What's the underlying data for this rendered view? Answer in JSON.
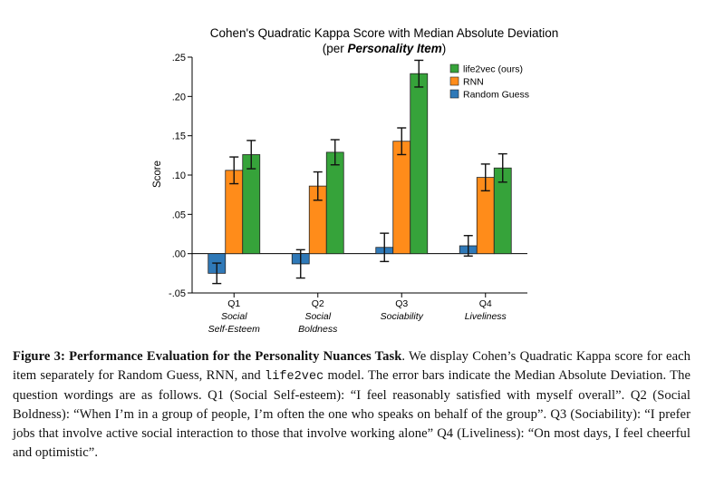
{
  "chart_data": {
    "type": "bar",
    "title": "Cohen's Quadratic Kappa Score with Median Absolute Deviation",
    "subtitle_prefix": "(per ",
    "subtitle_emph": "Personality Item",
    "subtitle_suffix": ")",
    "ylabel": "Score",
    "xlabel": "",
    "ylim": [
      -0.05,
      0.25
    ],
    "yticks": [
      -0.05,
      0.0,
      0.05,
      0.1,
      0.15,
      0.2,
      0.25
    ],
    "ytick_labels": [
      "-.05",
      ".00",
      ".05",
      ".10",
      ".15",
      ".20",
      ".25"
    ],
    "categories": [
      {
        "code": "Q1",
        "line1": "Social",
        "line2": "Self-Esteem"
      },
      {
        "code": "Q2",
        "line1": "Social",
        "line2": "Boldness"
      },
      {
        "code": "Q3",
        "line1": "Sociability",
        "line2": ""
      },
      {
        "code": "Q4",
        "line1": "Liveliness",
        "line2": ""
      }
    ],
    "series": [
      {
        "name": "Random Guess",
        "color": "#2f79b8",
        "values": [
          -0.025,
          -0.013,
          0.008,
          0.01
        ],
        "errors": [
          0.013,
          0.018,
          0.018,
          0.013
        ]
      },
      {
        "name": "RNN",
        "color": "#ff8c1a",
        "values": [
          0.106,
          0.086,
          0.143,
          0.097
        ],
        "errors": [
          0.017,
          0.018,
          0.017,
          0.017
        ]
      },
      {
        "name": "life2vec (ours)",
        "color": "#36a33a",
        "values": [
          0.126,
          0.129,
          0.229,
          0.109
        ],
        "errors": [
          0.018,
          0.016,
          0.017,
          0.018
        ]
      }
    ],
    "legend": [
      "life2vec (ours)",
      "RNN",
      "Random Guess"
    ],
    "legend_position": "top-right",
    "grid": false
  },
  "caption": {
    "label": "Figure 3:",
    "title": "Performance Evaluation for the Personality Nuances Task",
    "text1": ". We display Cohen’s Quadratic Kappa score for each item separately for Random Guess, RNN, and ",
    "model_name": "life2vec",
    "text2": " model. The error bars indicate the Median Absolute Deviation. The question wordings are as follows. Q1 (Social Self-esteem): “I feel reasonably satisfied with myself overall”. Q2 (Social Boldness): “When I’m in a group of people, I’m often the one who speaks on behalf of the group”. Q3 (Sociability): “I prefer jobs that involve active social interaction to those that involve working alone” Q4 (Liveliness): “On most days, I feel cheerful and optimistic”."
  }
}
